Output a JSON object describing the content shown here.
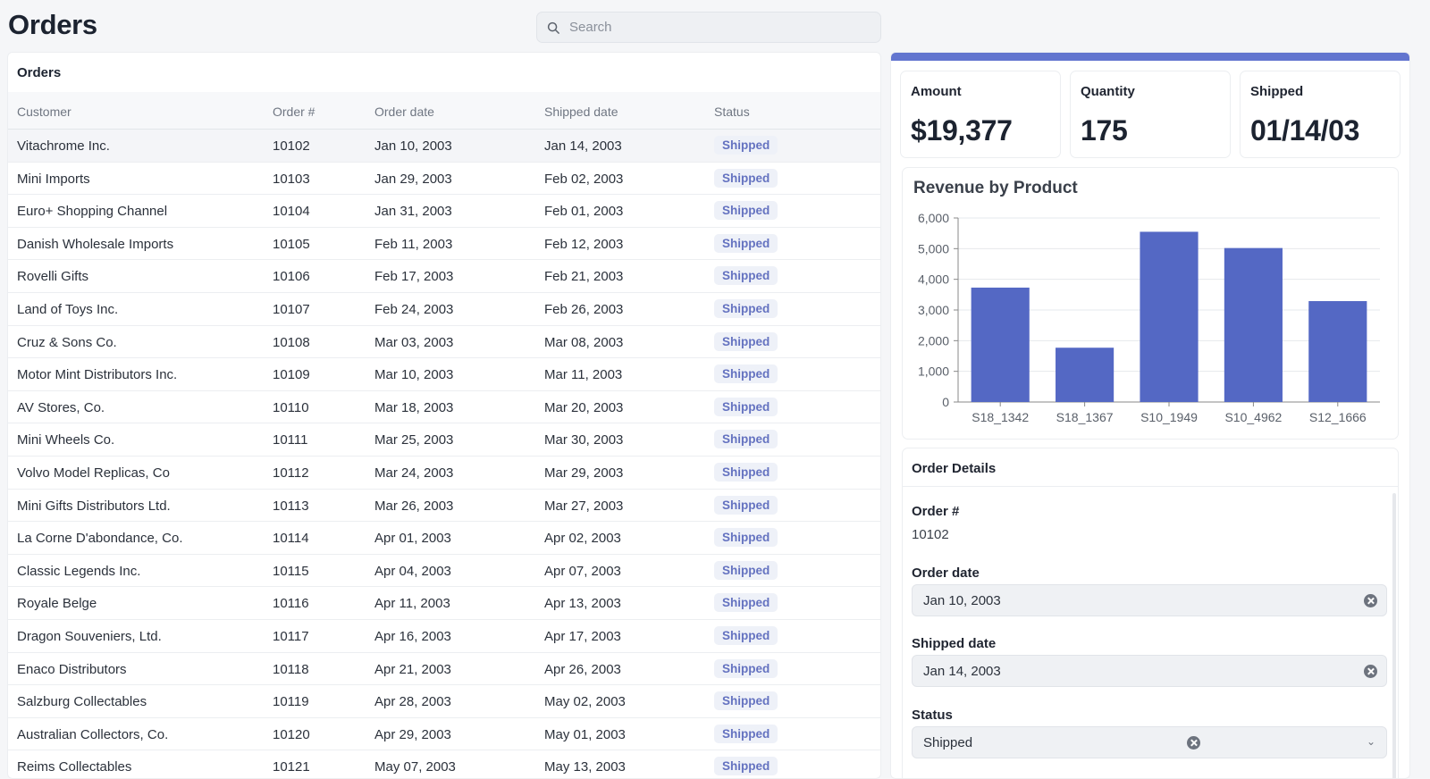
{
  "header": {
    "title": "Orders",
    "search_placeholder": "Search"
  },
  "orders_table": {
    "title": "Orders",
    "columns": [
      "Customer",
      "Order #",
      "Order date",
      "Shipped date",
      "Status"
    ],
    "rows": [
      {
        "customer": "Vitachrome Inc.",
        "order": "10102",
        "order_date": "Jan 10, 2003",
        "shipped_date": "Jan 14, 2003",
        "status": "Shipped"
      },
      {
        "customer": "Mini Imports",
        "order": "10103",
        "order_date": "Jan 29, 2003",
        "shipped_date": "Feb 02, 2003",
        "status": "Shipped"
      },
      {
        "customer": "Euro+ Shopping Channel",
        "order": "10104",
        "order_date": "Jan 31, 2003",
        "shipped_date": "Feb 01, 2003",
        "status": "Shipped"
      },
      {
        "customer": "Danish Wholesale Imports",
        "order": "10105",
        "order_date": "Feb 11, 2003",
        "shipped_date": "Feb 12, 2003",
        "status": "Shipped"
      },
      {
        "customer": "Rovelli Gifts",
        "order": "10106",
        "order_date": "Feb 17, 2003",
        "shipped_date": "Feb 21, 2003",
        "status": "Shipped"
      },
      {
        "customer": "Land of Toys Inc.",
        "order": "10107",
        "order_date": "Feb 24, 2003",
        "shipped_date": "Feb 26, 2003",
        "status": "Shipped"
      },
      {
        "customer": "Cruz & Sons Co.",
        "order": "10108",
        "order_date": "Mar 03, 2003",
        "shipped_date": "Mar 08, 2003",
        "status": "Shipped"
      },
      {
        "customer": "Motor Mint Distributors Inc.",
        "order": "10109",
        "order_date": "Mar 10, 2003",
        "shipped_date": "Mar 11, 2003",
        "status": "Shipped"
      },
      {
        "customer": "AV Stores, Co.",
        "order": "10110",
        "order_date": "Mar 18, 2003",
        "shipped_date": "Mar 20, 2003",
        "status": "Shipped"
      },
      {
        "customer": "Mini Wheels Co.",
        "order": "10111",
        "order_date": "Mar 25, 2003",
        "shipped_date": "Mar 30, 2003",
        "status": "Shipped"
      },
      {
        "customer": "Volvo Model Replicas, Co",
        "order": "10112",
        "order_date": "Mar 24, 2003",
        "shipped_date": "Mar 29, 2003",
        "status": "Shipped"
      },
      {
        "customer": "Mini Gifts Distributors Ltd.",
        "order": "10113",
        "order_date": "Mar 26, 2003",
        "shipped_date": "Mar 27, 2003",
        "status": "Shipped"
      },
      {
        "customer": "La Corne D'abondance, Co.",
        "order": "10114",
        "order_date": "Apr 01, 2003",
        "shipped_date": "Apr 02, 2003",
        "status": "Shipped"
      },
      {
        "customer": "Classic Legends Inc.",
        "order": "10115",
        "order_date": "Apr 04, 2003",
        "shipped_date": "Apr 07, 2003",
        "status": "Shipped"
      },
      {
        "customer": "Royale Belge",
        "order": "10116",
        "order_date": "Apr 11, 2003",
        "shipped_date": "Apr 13, 2003",
        "status": "Shipped"
      },
      {
        "customer": "Dragon Souveniers, Ltd.",
        "order": "10117",
        "order_date": "Apr 16, 2003",
        "shipped_date": "Apr 17, 2003",
        "status": "Shipped"
      },
      {
        "customer": "Enaco Distributors",
        "order": "10118",
        "order_date": "Apr 21, 2003",
        "shipped_date": "Apr 26, 2003",
        "status": "Shipped"
      },
      {
        "customer": "Salzburg Collectables",
        "order": "10119",
        "order_date": "Apr 28, 2003",
        "shipped_date": "May 02, 2003",
        "status": "Shipped"
      },
      {
        "customer": "Australian Collectors, Co.",
        "order": "10120",
        "order_date": "Apr 29, 2003",
        "shipped_date": "May 01, 2003",
        "status": "Shipped"
      },
      {
        "customer": "Reims Collectables",
        "order": "10121",
        "order_date": "May 07, 2003",
        "shipped_date": "May 13, 2003",
        "status": "Shipped"
      }
    ]
  },
  "stats": {
    "amount_label": "Amount",
    "amount_value": "$19,377",
    "quantity_label": "Quantity",
    "quantity_value": "175",
    "shipped_label": "Shipped",
    "shipped_value": "01/14/03"
  },
  "chart_data": {
    "type": "bar",
    "title": "Revenue by Product",
    "categories": [
      "S18_1342",
      "S18_1367",
      "S10_1949",
      "S10_4962",
      "S12_1666"
    ],
    "values": [
      3730,
      1770,
      5550,
      5020,
      3290
    ],
    "ylim": [
      0,
      6000
    ],
    "yticks": [
      "0",
      "1,000",
      "2,000",
      "3,000",
      "4,000",
      "5,000",
      "6,000"
    ],
    "grid": true,
    "bar_color": "#5468c4"
  },
  "order_details": {
    "title": "Order Details",
    "order_label": "Order #",
    "order_value": "10102",
    "order_date_label": "Order date",
    "order_date_value": "Jan 10, 2003",
    "shipped_date_label": "Shipped date",
    "shipped_date_value": "Jan 14, 2003",
    "status_label": "Status",
    "status_value": "Shipped"
  },
  "colors": {
    "accent": "#6275cf",
    "badge_text": "#6472c0",
    "badge_bg": "#eef1f8"
  }
}
